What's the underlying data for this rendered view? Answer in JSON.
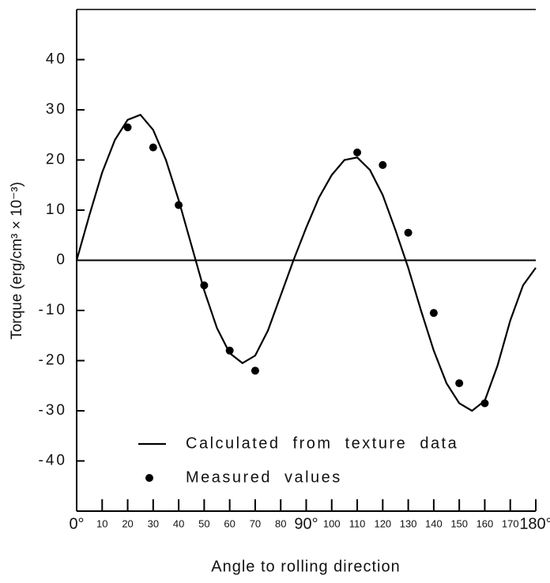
{
  "chart_data": {
    "type": "line",
    "xlabel": "Angle to rolling direction",
    "ylabel": "Torque (erg/cm³ × 10⁻³)",
    "xlim": [
      0,
      180
    ],
    "ylim": [
      -50,
      50
    ],
    "xticks": [
      {
        "value": 0,
        "label": "0°"
      },
      10,
      20,
      30,
      40,
      50,
      60,
      70,
      80,
      {
        "value": 90,
        "label": "90°"
      },
      100,
      110,
      120,
      130,
      140,
      150,
      160,
      170,
      {
        "value": 180,
        "label": "180°"
      }
    ],
    "yticks": [
      -40,
      -30,
      -20,
      -10,
      0,
      10,
      20,
      30,
      40
    ],
    "legend": "lower left",
    "series": [
      {
        "name": "Calculated from texture data",
        "color": "#000000",
        "style": "line",
        "x": [
          0,
          5,
          10,
          15,
          20,
          25,
          30,
          35,
          40,
          45,
          50,
          55,
          60,
          65,
          70,
          75,
          80,
          85,
          90,
          95,
          100,
          105,
          110,
          115,
          120,
          125,
          130,
          135,
          140,
          145,
          150,
          155,
          160,
          165,
          170,
          175,
          180
        ],
        "values": [
          0,
          9,
          17.5,
          24,
          28,
          29,
          26,
          20,
          12,
          3,
          -6,
          -13.5,
          -18.5,
          -20.5,
          -19,
          -14,
          -7,
          0,
          6.5,
          12.5,
          17,
          20,
          20.5,
          18,
          13,
          6,
          -1.5,
          -10,
          -18,
          -24.5,
          -28.5,
          -30,
          -28,
          -21,
          -12,
          -5,
          -1.5
        ]
      },
      {
        "name": "Measured values",
        "color": "#000000",
        "style": "scatter",
        "x": [
          20,
          30,
          40,
          50,
          60,
          70,
          110,
          120,
          130,
          140,
          150,
          160
        ],
        "values": [
          26.5,
          22.5,
          11,
          -5,
          -18,
          -22,
          21.5,
          19,
          5.5,
          -10.5,
          -24.5,
          -28.5
        ]
      }
    ]
  }
}
